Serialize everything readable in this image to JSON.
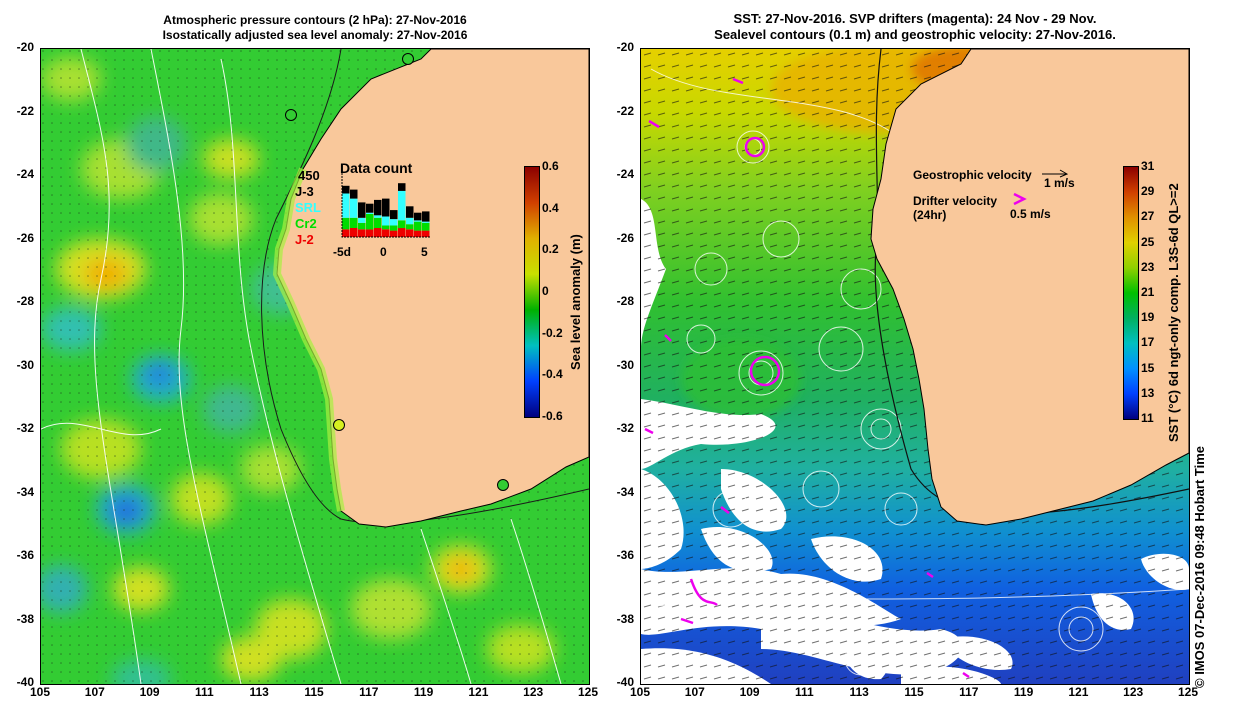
{
  "left_panel": {
    "title_line1": "Atmospheric pressure contours (2 hPa): 27-Nov-2016",
    "title_line2": "Isostatically adjusted sea level anomaly: 27-Nov-2016",
    "y_ticks": [
      "-20",
      "-22",
      "-24",
      "-26",
      "-28",
      "-30",
      "-32",
      "-34",
      "-36",
      "-38",
      "-40"
    ],
    "x_ticks": [
      "105",
      "107",
      "109",
      "111",
      "113",
      "115",
      "117",
      "119",
      "121",
      "123",
      "125"
    ],
    "colorbar": {
      "label": "Sea level anomaly (m)",
      "ticks": [
        "0.6",
        "0.4",
        "0.2",
        "0",
        "-0.2",
        "-0.4",
        "-0.6"
      ],
      "colors": [
        "#00007f",
        "#0040ff",
        "#00c0c0",
        "#00b000",
        "#c8e000",
        "#e0b000",
        "#d04000",
        "#8b0000"
      ]
    },
    "data_count": {
      "title": "Data count",
      "count_value": "450",
      "x_ticks": [
        "-5d",
        "0",
        "5"
      ],
      "legend": [
        {
          "label": "J-3",
          "color": "#000000"
        },
        {
          "label": "SRL",
          "color": "#33ffff"
        },
        {
          "label": "Cr2",
          "color": "#00dd00"
        },
        {
          "label": "J-2",
          "color": "#ee0000"
        }
      ],
      "bars": [
        {
          "j2": 0.12,
          "cr2": 0.18,
          "srl": 0.38,
          "j3": 0.12
        },
        {
          "j2": 0.14,
          "cr2": 0.16,
          "srl": 0.3,
          "j3": 0.14
        },
        {
          "j2": 0.12,
          "cr2": 0.1,
          "srl": 0.08,
          "j3": 0.24
        },
        {
          "j2": 0.12,
          "cr2": 0.24,
          "srl": 0.02,
          "j3": 0.14
        },
        {
          "j2": 0.14,
          "cr2": 0.16,
          "srl": 0.04,
          "j3": 0.24
        },
        {
          "j2": 0.12,
          "cr2": 0.06,
          "srl": 0.14,
          "j3": 0.28
        },
        {
          "j2": 0.1,
          "cr2": 0.08,
          "srl": 0.1,
          "j3": 0.14
        },
        {
          "j2": 0.14,
          "cr2": 0.12,
          "srl": 0.46,
          "j3": 0.12
        },
        {
          "j2": 0.12,
          "cr2": 0.08,
          "srl": 0.1,
          "j3": 0.18
        },
        {
          "j2": 0.1,
          "cr2": 0.14,
          "srl": 0.02,
          "j3": 0.12
        },
        {
          "j2": 0.1,
          "cr2": 0.12,
          "srl": 0.02,
          "j3": 0.16
        }
      ]
    }
  },
  "right_panel": {
    "title_line1": "SST: 27-Nov-2016. SVP drifters (magenta): 24 Nov - 29 Nov.",
    "title_line2": "Sealevel contours (0.1 m) and geostrophic velocity: 27-Nov-2016.",
    "y_ticks": [
      "-20",
      "-22",
      "-24",
      "-26",
      "-28",
      "-30",
      "-32",
      "-34",
      "-36",
      "-38",
      "-40"
    ],
    "x_ticks": [
      "105",
      "107",
      "109",
      "111",
      "113",
      "115",
      "117",
      "119",
      "121",
      "123",
      "125"
    ],
    "geostrophic_label": "Geostrophic velocity",
    "geostrophic_scale": "1 m/s",
    "drifter_label_line1": "Drifter velocity",
    "drifter_label_line2": "(24hr)",
    "drifter_scale": "0.5 m/s",
    "colorbar": {
      "label": "SST (°C) 6d ngt-only comp. L3S-6d QL>=2",
      "ticks": [
        "31",
        "29",
        "27",
        "25",
        "23",
        "21",
        "19",
        "17",
        "15",
        "13",
        "11"
      ],
      "colors": [
        "#00007f",
        "#0040ff",
        "#0090ff",
        "#00c0c0",
        "#00b060",
        "#00c000",
        "#90d000",
        "#e0d000",
        "#e09000",
        "#d04000",
        "#8b0000"
      ]
    },
    "land_color": "#f9c89b"
  },
  "timestamp_label": "© IMOS 07-Dec-2016 09:48 Hobart Time"
}
